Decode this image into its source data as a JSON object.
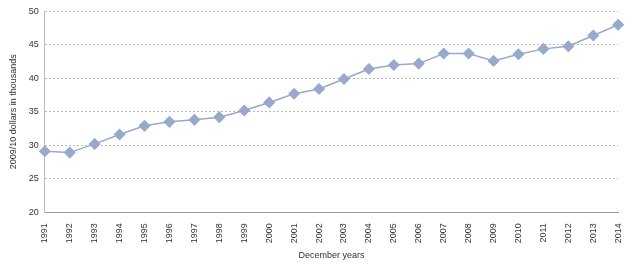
{
  "chart_data": {
    "type": "line",
    "x_label": "December years",
    "y_label": "2009/10 dollars in thousands",
    "categories": [
      "1991",
      "1992",
      "1993",
      "1994",
      "1995",
      "1996",
      "1997",
      "1998",
      "1999",
      "2000",
      "2001",
      "2002",
      "2003",
      "2004",
      "2005",
      "2006",
      "2007",
      "2008",
      "2009",
      "2010",
      "2011",
      "2012",
      "2013",
      "2014"
    ],
    "values": [
      29.1,
      28.9,
      30.2,
      31.6,
      32.9,
      33.5,
      33.8,
      34.2,
      35.2,
      36.4,
      37.7,
      38.4,
      39.9,
      41.4,
      42.0,
      42.2,
      43.7,
      43.7,
      42.6,
      43.6,
      44.4,
      44.8,
      46.4,
      48.0
    ],
    "color": "#98a9cc",
    "marker": "diamond",
    "line_style": "solid",
    "ylim": [
      20,
      50
    ],
    "yticks": [
      20,
      25,
      30,
      35,
      40,
      45,
      50
    ],
    "grid": true
  }
}
